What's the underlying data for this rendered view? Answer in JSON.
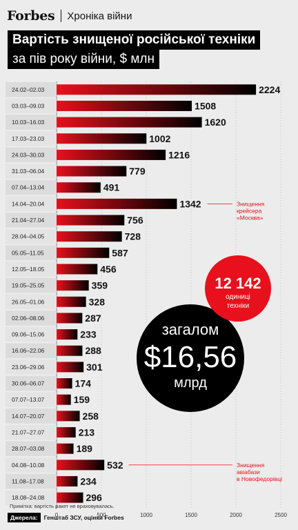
{
  "header": {
    "brand": "Forbes",
    "series": "Хроніка війни"
  },
  "title": {
    "line1": "Вартість знищеної російської техніки",
    "line2": "за пів року війни, $ млн"
  },
  "chart_data": {
    "type": "bar",
    "orientation": "horizontal",
    "categories": [
      "24.02–02.03",
      "03.03–09.03",
      "10.03–16.03",
      "17.03–23.03",
      "24.03–30.03",
      "31.03–06.04",
      "07.04–13.04",
      "14.04–20.04",
      "21.04–27.04",
      "28.04–04.05",
      "05.05–11.05",
      "12.05–18.05",
      "19.05–25.05",
      "26.05–01.06",
      "02.06–08.06",
      "09.06–15.06",
      "16.06–22.06",
      "23.06–29.06",
      "30.06–06.07",
      "07.07–13.07",
      "14.07–20.07",
      "21.07–27.07",
      "28.07–03.08",
      "04.08–10.08",
      "11.08–17.08",
      "18.08–24.08"
    ],
    "values": [
      2224,
      1508,
      1620,
      1002,
      1216,
      779,
      491,
      1342,
      756,
      728,
      587,
      456,
      359,
      328,
      287,
      233,
      288,
      301,
      174,
      159,
      258,
      213,
      189,
      532,
      234,
      296
    ],
    "x_ticks": [
      "0",
      "500",
      "1000",
      "1500",
      "2000",
      "2500"
    ],
    "xlim": [
      0,
      2500
    ],
    "grid": true,
    "annotations": [
      {
        "category_index": 7,
        "text": [
          "Знищення",
          "крейсера",
          "«Москва»"
        ]
      },
      {
        "category_index": 23,
        "text": [
          "Знищення",
          "авіабази",
          "в Новофедорівці"
        ]
      }
    ]
  },
  "callouts": {
    "units": {
      "value": "12 142",
      "line1": "одиниці",
      "line2": "техніки"
    },
    "total": {
      "label": "загалом",
      "value": "$16,56",
      "unit": "млрд"
    }
  },
  "colors": {
    "accent": "#e8101c",
    "bar_end": "#000000",
    "background": "#ececec"
  },
  "footer": {
    "note": "Примітка: вартість ракет не враховувалась.",
    "source_label": "Джерела:",
    "source_text": "Генштаб ЗСУ, оцінки Forbes"
  }
}
